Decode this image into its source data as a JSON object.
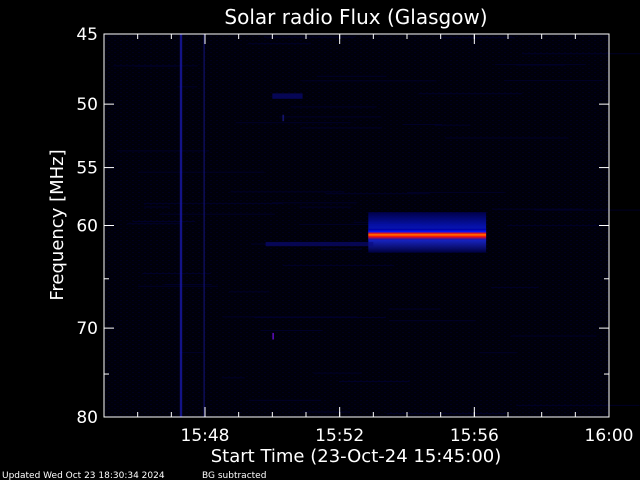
{
  "chart_data": {
    "type": "heatmap",
    "title": "Solar radio Flux (Glasgow)",
    "xlabel": "Start Time (23-Oct-24 15:45:00)",
    "ylabel": "Frequency [MHz]",
    "x_units": "minutes since 15:45:00",
    "xlim": [
      0,
      15
    ],
    "ylim": [
      45,
      80
    ],
    "y_scale": "log",
    "y_inverted": true,
    "x_ticks": [
      {
        "value": 3,
        "label": "15:48"
      },
      {
        "value": 7,
        "label": "15:52"
      },
      {
        "value": 11,
        "label": "15:56"
      },
      {
        "value": 15,
        "label": "16:00"
      }
    ],
    "y_ticks": [
      {
        "value": 45,
        "label": "45"
      },
      {
        "value": 50,
        "label": "50"
      },
      {
        "value": 55,
        "label": "55"
      },
      {
        "value": 60,
        "label": "60"
      },
      {
        "value": 70,
        "label": "70"
      },
      {
        "value": 80,
        "label": "80"
      }
    ],
    "colormap": [
      "#000000",
      "#000040",
      "#0000c0",
      "#3020ff",
      "#ff0000",
      "#ff8800"
    ],
    "features": [
      {
        "name": "vertical-interference-line",
        "x_start": 2.25,
        "x_end": 2.32,
        "y_start": 45,
        "y_end": 80,
        "intensity": 0.55
      },
      {
        "name": "vertical-interference-line",
        "x_start": 2.95,
        "x_end": 3.0,
        "y_start": 45,
        "y_end": 80,
        "intensity": 0.35
      },
      {
        "name": "broadband-blue-band",
        "x_start": 7.85,
        "x_end": 11.35,
        "y_start": 58.8,
        "y_end": 62.5,
        "intensity": 0.45
      },
      {
        "name": "intense-emission-band",
        "x_start": 7.85,
        "x_end": 11.35,
        "y_start": 60.3,
        "y_end": 61.3,
        "intensity": 1.0
      },
      {
        "name": "weak-spot",
        "x_start": 5.0,
        "x_end": 5.05,
        "y_start": 70.5,
        "y_end": 71.2,
        "intensity": 0.5
      },
      {
        "name": "weak-spot",
        "x_start": 5.3,
        "x_end": 5.35,
        "y_start": 50.8,
        "y_end": 51.3,
        "intensity": 0.3
      },
      {
        "name": "weak-row",
        "x_start": 4.8,
        "x_end": 8.0,
        "y_start": 61.5,
        "y_end": 61.9,
        "intensity": 0.25
      },
      {
        "name": "weak-row",
        "x_start": 5.0,
        "x_end": 5.9,
        "y_start": 49.2,
        "y_end": 49.6,
        "intensity": 0.3
      }
    ]
  },
  "footer": {
    "updated": "Updated Wed Oct 23 18:30:34 2024",
    "bg_note": "BG subtracted"
  }
}
